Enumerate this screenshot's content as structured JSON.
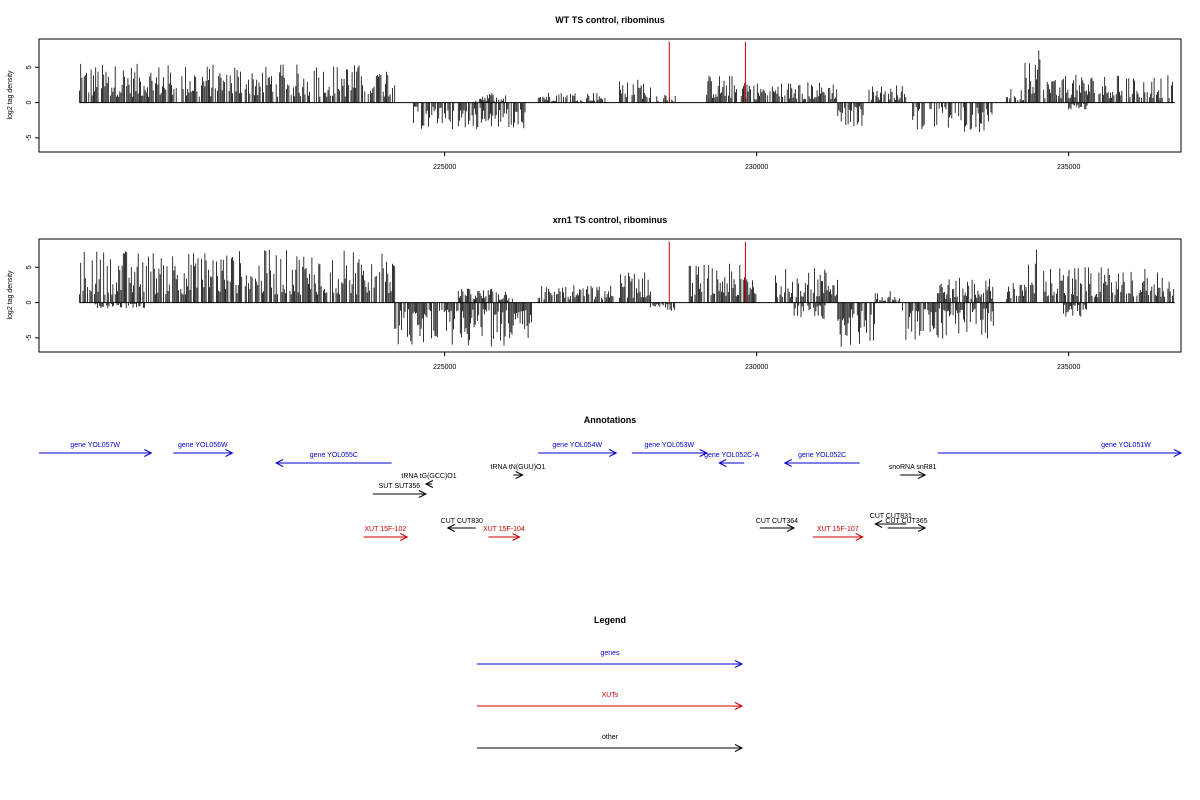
{
  "chart_data": [
    {
      "type": "bar",
      "title": "WT TS control, ribominus",
      "ylabel": "log2 tag density",
      "xlim": [
        218500,
        236800
      ],
      "ylim": [
        -7,
        9
      ],
      "xticks": [
        225000,
        230000,
        235000
      ],
      "yticks": [
        -5,
        0,
        5
      ],
      "grid": false,
      "signal": [
        {
          "start": 219150,
          "end": 224200,
          "dir": 1,
          "max": 5.5
        },
        {
          "start": 224500,
          "end": 226300,
          "dir": -1,
          "max": 3.8
        },
        {
          "start": 225500,
          "end": 226000,
          "dir": 1,
          "max": 1.5
        },
        {
          "start": 226500,
          "end": 227600,
          "dir": 1,
          "max": 1.5
        },
        {
          "start": 227800,
          "end": 228300,
          "dir": 1,
          "max": 3.4
        },
        {
          "start": 228400,
          "end": 228700,
          "dir": 1,
          "max": 1.5
        },
        {
          "start": 229200,
          "end": 229900,
          "dir": 1,
          "max": 4.0
        },
        {
          "start": 229900,
          "end": 231300,
          "dir": 1,
          "max": 3.0
        },
        {
          "start": 231300,
          "end": 231800,
          "dir": -1,
          "max": 3.5
        },
        {
          "start": 231800,
          "end": 232400,
          "dir": 1,
          "max": 2.5
        },
        {
          "start": 232500,
          "end": 233800,
          "dir": -1,
          "max": 4.2
        },
        {
          "start": 234000,
          "end": 234300,
          "dir": 1,
          "max": 2.0
        },
        {
          "start": 234300,
          "end": 234550,
          "dir": 1,
          "max": 8.5
        },
        {
          "start": 234600,
          "end": 236700,
          "dir": 1,
          "max": 4.0
        },
        {
          "start": 235000,
          "end": 235300,
          "dir": -1,
          "max": 1.0
        }
      ],
      "highlights": [
        {
          "x": 228600,
          "y": 8.6,
          "color": "#cc0000"
        },
        {
          "x": 229820,
          "y": 8.6,
          "color": "#cc0000"
        }
      ]
    },
    {
      "type": "bar",
      "title": "xrn1 TS control, ribominus",
      "ylabel": "log2 tag density",
      "xlim": [
        218500,
        236800
      ],
      "ylim": [
        -7,
        9
      ],
      "xticks": [
        225000,
        230000,
        235000
      ],
      "yticks": [
        -5,
        0,
        5
      ],
      "grid": false,
      "signal": [
        {
          "start": 219150,
          "end": 224200,
          "dir": 1,
          "max": 7.5
        },
        {
          "start": 219400,
          "end": 220200,
          "dir": -1,
          "max": 0.8
        },
        {
          "start": 224200,
          "end": 226400,
          "dir": -1,
          "max": 6.3
        },
        {
          "start": 225200,
          "end": 226100,
          "dir": 1,
          "max": 2.0
        },
        {
          "start": 226500,
          "end": 227700,
          "dir": 1,
          "max": 2.5
        },
        {
          "start": 227800,
          "end": 228300,
          "dir": 1,
          "max": 4.5
        },
        {
          "start": 228300,
          "end": 228700,
          "dir": -1,
          "max": 1.2
        },
        {
          "start": 228900,
          "end": 230000,
          "dir": 1,
          "max": 5.5
        },
        {
          "start": 230300,
          "end": 231300,
          "dir": 1,
          "max": 5.0
        },
        {
          "start": 230600,
          "end": 231100,
          "dir": -1,
          "max": 2.5
        },
        {
          "start": 231300,
          "end": 231900,
          "dir": -1,
          "max": 6.5
        },
        {
          "start": 231900,
          "end": 232300,
          "dir": 1,
          "max": 1.8
        },
        {
          "start": 232300,
          "end": 233800,
          "dir": -1,
          "max": 5.3
        },
        {
          "start": 232900,
          "end": 233800,
          "dir": 1,
          "max": 3.5
        },
        {
          "start": 234000,
          "end": 234300,
          "dir": 1,
          "max": 3.0
        },
        {
          "start": 234300,
          "end": 234550,
          "dir": 1,
          "max": 8.3
        },
        {
          "start": 234600,
          "end": 236700,
          "dir": 1,
          "max": 5.0
        },
        {
          "start": 234900,
          "end": 235300,
          "dir": -1,
          "max": 2.0
        }
      ],
      "highlights": [
        {
          "x": 228600,
          "y": 8.6,
          "color": "#cc0000"
        },
        {
          "x": 229820,
          "y": 8.6,
          "color": "#cc0000"
        }
      ]
    }
  ],
  "annotations": {
    "title": "Annotations",
    "colors": {
      "gene": "#0000cc",
      "xut": "#cc0000",
      "other": "#000000"
    },
    "xlim": [
      218500,
      236800
    ],
    "features": [
      {
        "label": "gene YOL057W",
        "kind": "gene",
        "start": 218500,
        "end": 220300,
        "strand": "+",
        "row": 0
      },
      {
        "label": "gene YOL056W",
        "kind": "gene",
        "start": 220650,
        "end": 221600,
        "strand": "+",
        "row": 0
      },
      {
        "label": "gene YOL055C",
        "kind": "gene",
        "start": 222300,
        "end": 224150,
        "strand": "-",
        "row": 1
      },
      {
        "label": "gene YOL054W",
        "kind": "gene",
        "start": 226500,
        "end": 227750,
        "strand": "+",
        "row": 0
      },
      {
        "label": "gene YOL053W",
        "kind": "gene",
        "start": 228000,
        "end": 229200,
        "strand": "+",
        "row": 0
      },
      {
        "label": "gene YOL052C-A",
        "kind": "gene",
        "start": 229400,
        "end": 229800,
        "strand": "-",
        "row": 1
      },
      {
        "label": "gene YOL052C",
        "kind": "gene",
        "start": 230450,
        "end": 231650,
        "strand": "-",
        "row": 1
      },
      {
        "label": "gene YOL051W",
        "kind": "gene",
        "start": 232900,
        "end": 236800,
        "strand": "+",
        "row": 0
      },
      {
        "label": "tRNA tG(GCC)O1",
        "kind": "other",
        "start": 224700,
        "end": 224800,
        "strand": "-",
        "row": 3
      },
      {
        "label": "SUT SUT356",
        "kind": "other",
        "start": 223850,
        "end": 224700,
        "strand": "+",
        "row": 4
      },
      {
        "label": "tRNA tN(GUU)O1",
        "kind": "other",
        "start": 226100,
        "end": 226250,
        "strand": "+",
        "row": 2
      },
      {
        "label": "snoRNA snR81",
        "kind": "other",
        "start": 232300,
        "end": 232700,
        "strand": "+",
        "row": 2
      },
      {
        "label": "CUT CUT830",
        "kind": "other",
        "start": 225050,
        "end": 225500,
        "strand": "-",
        "row": 5
      },
      {
        "label": "CUT CUT364",
        "kind": "other",
        "start": 230050,
        "end": 230600,
        "strand": "+",
        "row": 5
      },
      {
        "label": "CUT CUT365",
        "kind": "other",
        "start": 232100,
        "end": 232700,
        "strand": "+",
        "row": 5
      },
      {
        "label": "CUT CUT831",
        "kind": "other",
        "start": 231900,
        "end": 232400,
        "strand": "-",
        "row": 6
      },
      {
        "label": "XUT 15F-102",
        "kind": "xut",
        "start": 223700,
        "end": 224400,
        "strand": "+",
        "row": 7
      },
      {
        "label": "XUT 15F-104",
        "kind": "xut",
        "start": 225700,
        "end": 226200,
        "strand": "+",
        "row": 7
      },
      {
        "label": "XUT 15F-107",
        "kind": "xut",
        "start": 230900,
        "end": 231700,
        "strand": "+",
        "row": 7
      }
    ]
  },
  "legend": {
    "title": "Legend",
    "items": [
      {
        "label": "genes",
        "color": "#0000cc"
      },
      {
        "label": "XUTs",
        "color": "#cc0000"
      },
      {
        "label": "other",
        "color": "#000000"
      }
    ]
  }
}
